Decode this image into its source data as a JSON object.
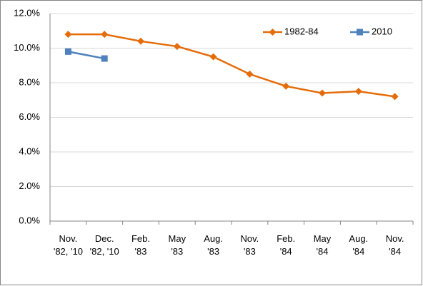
{
  "chart_data": {
    "type": "line",
    "categories": [
      "Nov. '82, '10",
      "Dec. '82, '10",
      "Feb. '83",
      "May '83",
      "Aug. '83",
      "Nov. '83",
      "Feb. '84",
      "May '84",
      "Aug. '84",
      "Nov. '84"
    ],
    "series": [
      {
        "name": "1982-84",
        "color": "#e46c0a",
        "marker": "diamond",
        "values": [
          10.8,
          10.8,
          10.4,
          10.1,
          9.5,
          8.5,
          7.8,
          7.4,
          7.5,
          7.2
        ]
      },
      {
        "name": "2010",
        "color": "#4f81bd",
        "marker": "square",
        "values": [
          9.8,
          9.4,
          null,
          null,
          null,
          null,
          null,
          null,
          null,
          null
        ]
      }
    ],
    "ylim": [
      0,
      12
    ],
    "yticks": [
      {
        "value": 0,
        "label": "0.0%"
      },
      {
        "value": 2,
        "label": "2.0%"
      },
      {
        "value": 4,
        "label": "4.0%"
      },
      {
        "value": 6,
        "label": "6.0%"
      },
      {
        "value": 8,
        "label": "8.0%"
      },
      {
        "value": 10,
        "label": "10.0%"
      },
      {
        "value": 12,
        "label": "12.0%"
      }
    ],
    "grid": true,
    "legend": "upper right"
  }
}
